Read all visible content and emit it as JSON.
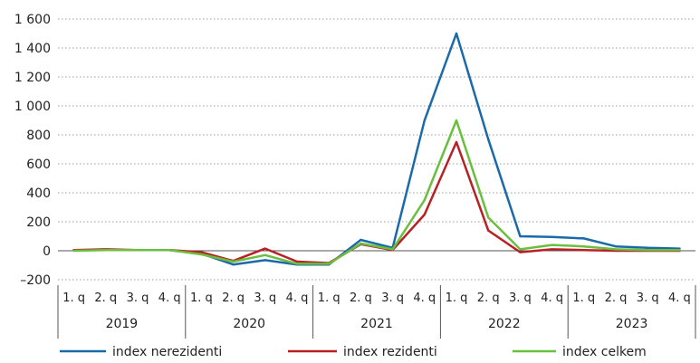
{
  "chart_data": {
    "type": "line",
    "title": "",
    "xlabel": "",
    "ylabel": "",
    "ylim": [
      -200,
      1600
    ],
    "yticks": [
      -200,
      0,
      200,
      400,
      600,
      800,
      1000,
      1200,
      1400,
      1600
    ],
    "ytick_labels": [
      "–200",
      "0",
      "200",
      "400",
      "600",
      "800",
      "1 000",
      "1 200",
      "1 400",
      "1 600"
    ],
    "grid": "horizontal dotted",
    "legend_position": "bottom",
    "categories": [
      "1. q",
      "2. q",
      "3. q",
      "4. q",
      "1. q",
      "2. q",
      "3. q",
      "4. q",
      "1. q",
      "2. q",
      "3. q",
      "4. q",
      "1. q",
      "2. q",
      "3. q",
      "4. q",
      "1. q",
      "2. q",
      "3. q",
      "4. q"
    ],
    "years": [
      "2019",
      "2020",
      "2021",
      "2022",
      "2023"
    ],
    "series": [
      {
        "name": "index nerezidenti",
        "color": "#1a6aaa",
        "values": [
          5,
          5,
          5,
          5,
          -20,
          -95,
          -65,
          -95,
          -95,
          75,
          20,
          900,
          1500,
          770,
          100,
          95,
          85,
          30,
          20,
          15
        ]
      },
      {
        "name": "index rezidenti",
        "color": "#b82124",
        "values": [
          5,
          10,
          5,
          5,
          -10,
          -70,
          15,
          -75,
          -85,
          45,
          5,
          250,
          750,
          140,
          -10,
          10,
          5,
          0,
          0,
          0
        ]
      },
      {
        "name": "index celkem",
        "color": "#6abf3f",
        "values": [
          0,
          5,
          5,
          5,
          -25,
          -75,
          -30,
          -90,
          -90,
          50,
          10,
          350,
          900,
          230,
          10,
          40,
          30,
          10,
          5,
          5
        ]
      }
    ]
  }
}
